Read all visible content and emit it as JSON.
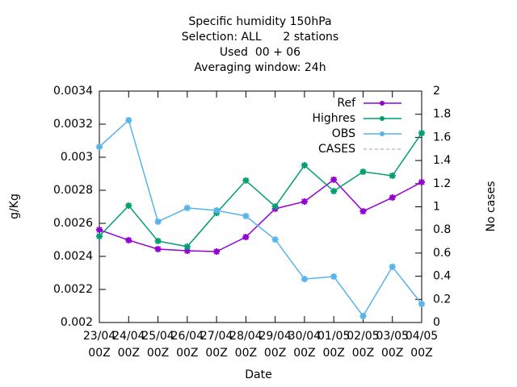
{
  "chart_data": {
    "type": "line",
    "title": [
      "Specific humidity 150hPa",
      "Selection: ALL      2 stations",
      "Used  00 + 06",
      "Averaging window: 24h"
    ],
    "xlabel": "Date",
    "ylabel": "g/Kg",
    "y2label": "No cases",
    "categories": [
      [
        "23/04",
        "00Z"
      ],
      [
        "24/04",
        "00Z"
      ],
      [
        "25/04",
        "00Z"
      ],
      [
        "26/04",
        "00Z"
      ],
      [
        "27/04",
        "00Z"
      ],
      [
        "28/04",
        "00Z"
      ],
      [
        "29/04",
        "00Z"
      ],
      [
        "30/04",
        "00Z"
      ],
      [
        "01/05",
        "00Z"
      ],
      [
        "02/05",
        "00Z"
      ],
      [
        "03/05",
        "00Z"
      ],
      [
        "04/05",
        "00Z"
      ]
    ],
    "series": [
      {
        "name": "Ref",
        "color": "#9400d3",
        "values": [
          0.002561,
          0.002498,
          0.002444,
          0.002434,
          0.002429,
          0.002517,
          0.002688,
          0.002732,
          0.002864,
          0.002673,
          0.002756,
          0.002849
        ]
      },
      {
        "name": "Highres",
        "color": "#009e73",
        "values": [
          0.002522,
          0.002707,
          0.002493,
          0.002459,
          0.002663,
          0.002859,
          0.002702,
          0.002951,
          0.002795,
          0.002912,
          0.002888,
          0.003146
        ]
      },
      {
        "name": "OBS",
        "color": "#56b4e9",
        "values": [
          0.003063,
          0.003224,
          0.00261,
          0.002693,
          0.002678,
          0.002644,
          0.002502,
          0.002263,
          0.002278,
          0.002039,
          0.002337,
          0.002112
        ]
      },
      {
        "name": "CASES",
        "color": "#a0a0a0",
        "dash": true,
        "axis": "y2",
        "values": [
          null,
          null,
          null,
          null,
          null,
          null,
          null,
          null,
          null,
          null,
          null,
          null
        ]
      }
    ],
    "ylim": [
      0.002,
      0.0034
    ],
    "yticks": [
      0.002,
      0.0022,
      0.0024,
      0.0026,
      0.0028,
      0.003,
      0.0032,
      0.0034
    ],
    "y2lim": [
      0,
      2
    ],
    "y2ticks": [
      0,
      0.2,
      0.4,
      0.6,
      0.8,
      1,
      1.2,
      1.4,
      1.6,
      1.8,
      2
    ],
    "legend": "top-right",
    "grid": false
  }
}
